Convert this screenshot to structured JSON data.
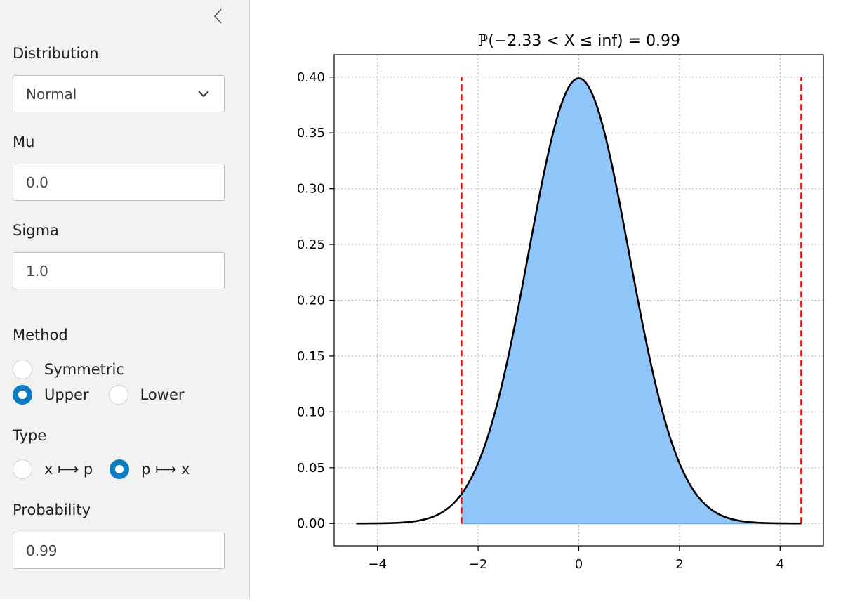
{
  "sidebar": {
    "collapse_icon": "chevron-left-icon",
    "distribution": {
      "label": "Distribution",
      "value": "Normal"
    },
    "mu": {
      "label": "Mu",
      "value": "0.0"
    },
    "sigma": {
      "label": "Sigma",
      "value": "1.0"
    },
    "method": {
      "label": "Method",
      "options": [
        {
          "label": "Symmetric",
          "selected": false
        },
        {
          "label": "Upper",
          "selected": true
        },
        {
          "label": "Lower",
          "selected": false
        }
      ]
    },
    "type": {
      "label": "Type",
      "options": [
        {
          "label": "x ⟼ p",
          "selected": false
        },
        {
          "label": "p ⟼ x",
          "selected": true
        }
      ]
    },
    "probability": {
      "label": "Probability",
      "value": "0.99"
    },
    "accent_color": "#0c7bc2"
  },
  "chart_data": {
    "type": "area",
    "title": "ℙ(−2.33 < X ≤ inf) = 0.99",
    "xlabel": "",
    "ylabel": "",
    "curve": "normal pdf",
    "mu": 0.0,
    "sigma": 1.0,
    "x_range": [
      -4.42,
      4.42
    ],
    "xlim": [
      -4.86,
      4.86
    ],
    "ylim": [
      -0.02,
      0.42
    ],
    "xticks": [
      -4,
      -2,
      0,
      2,
      4
    ],
    "xtick_labels": [
      "−4",
      "−2",
      "0",
      "2",
      "4"
    ],
    "yticks": [
      0.0,
      0.05,
      0.1,
      0.15,
      0.2,
      0.25,
      0.3,
      0.35,
      0.4
    ],
    "ytick_labels": [
      "0.00",
      "0.05",
      "0.10",
      "0.15",
      "0.20",
      "0.25",
      "0.30",
      "0.35",
      "0.40"
    ],
    "shaded_region": [
      -2.33,
      4.42
    ],
    "bounds": [
      -2.33,
      4.42
    ],
    "grid": true,
    "colors": {
      "fill": "#90c5fa",
      "curve": "#000000",
      "bounds": "#e8140c"
    }
  }
}
